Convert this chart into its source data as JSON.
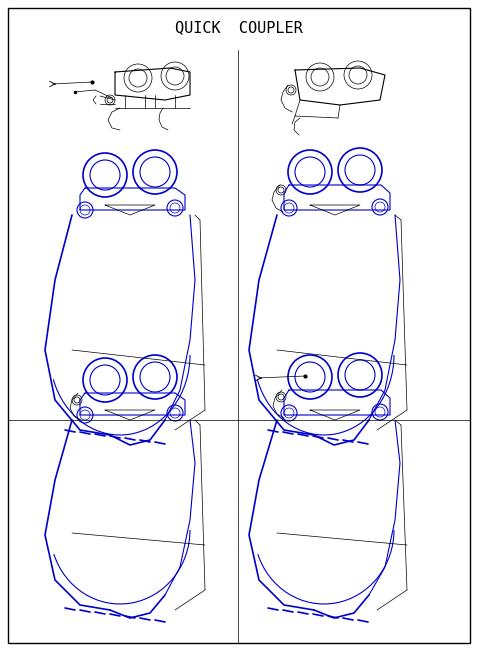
{
  "title": "QUICK  COUPLER",
  "black": "#000000",
  "blue": "#0000cc",
  "figsize": [
    4.78,
    6.51
  ],
  "dpi": 100
}
